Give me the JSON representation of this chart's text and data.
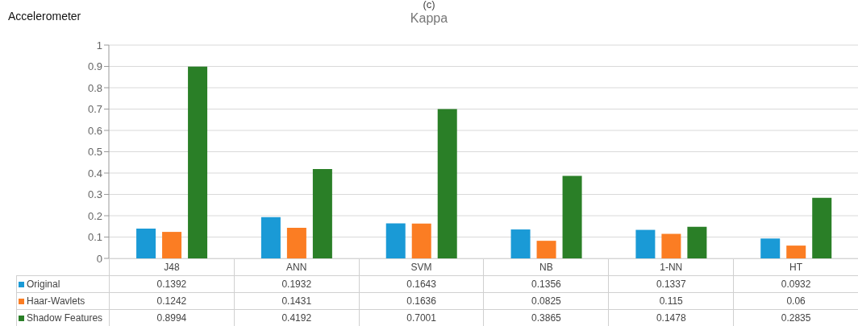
{
  "chart_data": {
    "type": "bar",
    "title": "Kappa",
    "subtitle": "Accelerometer",
    "annotations": [
      "(c)"
    ],
    "categories": [
      "J48",
      "ANN",
      "SVM",
      "NB",
      "1-NN",
      "HT"
    ],
    "series": [
      {
        "name": "Original",
        "color": "#1a9ad6",
        "values": [
          0.1392,
          0.1932,
          0.1643,
          0.1356,
          0.1337,
          0.0932
        ]
      },
      {
        "name": "Haar-Wavlets",
        "color": "#fb7d23",
        "values": [
          0.1242,
          0.1431,
          0.1636,
          0.0825,
          0.115,
          0.06
        ]
      },
      {
        "name": "Shadow Features",
        "color": "#2a7f27",
        "values": [
          0.8994,
          0.4192,
          0.7001,
          0.3865,
          0.1478,
          0.2835
        ]
      }
    ],
    "ylim": [
      0,
      1
    ],
    "yticks": [
      0,
      0.1,
      0.2,
      0.3,
      0.4,
      0.5,
      0.6,
      0.7,
      0.8,
      0.9,
      1
    ],
    "grid": "y",
    "legend": "bottom",
    "data_labels": true
  }
}
